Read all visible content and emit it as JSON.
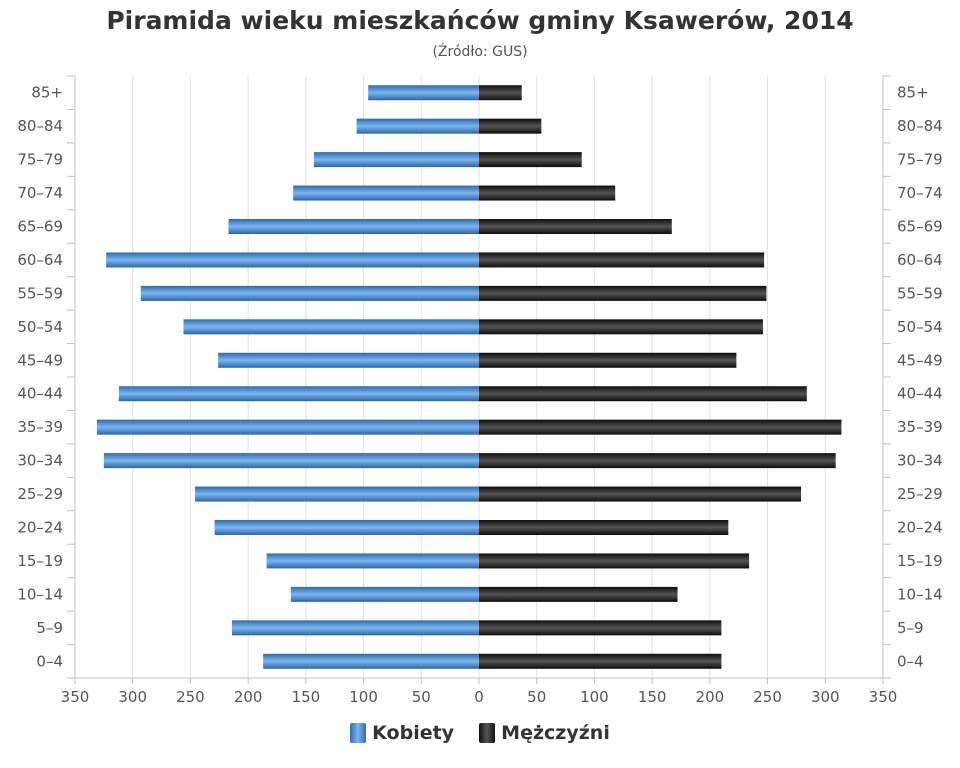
{
  "chart_data": {
    "type": "bar",
    "orientation": "horizontal-population-pyramid",
    "title": "Piramida wieku mieszkańców gminy Ksawerów, 2014",
    "subtitle": "(Źródło: GUS)",
    "categories": [
      "85+",
      "80-84",
      "75-79",
      "70-74",
      "65-69",
      "60-64",
      "55-59",
      "50-54",
      "45-49",
      "40-44",
      "35-39",
      "30-34",
      "25-29",
      "20-24",
      "15-19",
      "10-14",
      "5-9",
      "0-4"
    ],
    "series": [
      {
        "name": "Kobiety",
        "color": "#3f83c9",
        "values": [
          96,
          106,
          143,
          161,
          217,
          323,
          293,
          256,
          226,
          312,
          331,
          325,
          246,
          229,
          184,
          163,
          214,
          187
        ]
      },
      {
        "name": "Mężczyźni",
        "color": "#1a1a1a",
        "values": [
          37,
          54,
          89,
          118,
          167,
          247,
          249,
          246,
          223,
          284,
          314,
          309,
          279,
          216,
          234,
          172,
          210,
          210
        ]
      }
    ],
    "xlim": [
      -350,
      350
    ],
    "xticks": [
      "350",
      "300",
      "250",
      "200",
      "150",
      "100",
      "50",
      "0",
      "50",
      "100",
      "150",
      "200",
      "250",
      "300",
      "350"
    ],
    "grid": true,
    "legend": "bottom-center"
  }
}
